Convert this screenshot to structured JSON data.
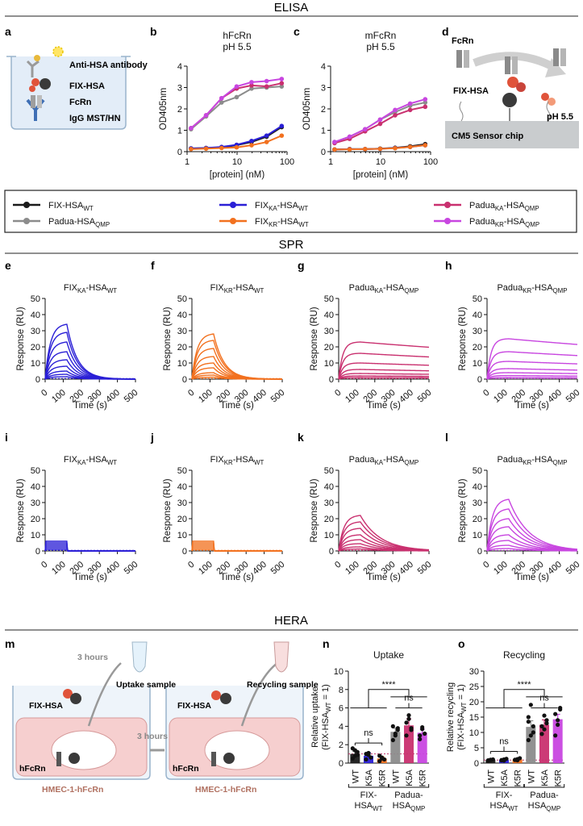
{
  "sections": {
    "elisa": "ELISA",
    "spr": "SPR",
    "hera": "HERA"
  },
  "panel_letters": [
    "a",
    "b",
    "c",
    "d",
    "e",
    "f",
    "g",
    "h",
    "i",
    "j",
    "k",
    "l",
    "m",
    "n",
    "o"
  ],
  "colors": {
    "FIX_WT": "#1a1a1a",
    "Padua_QMP": "#8c8c8c",
    "FIX_KA": "#2a1fd6",
    "FIX_KR": "#f2711f",
    "Padua_KA": "#c9306f",
    "Padua_KR": "#c846e0"
  },
  "schematic_a": {
    "labels": [
      "Anti-HSA antibody",
      "FIX-HSA",
      "FcRn",
      "IgG MST/HN"
    ]
  },
  "schematic_d": {
    "labels": [
      "FcRn",
      "FIX-HSA",
      "pH 5.5",
      "CM5 Sensor chip"
    ]
  },
  "schematic_m": {
    "labels": [
      "3 hours",
      "Uptake sample",
      "Recycling sample",
      "FIX-HSA",
      "FIX-HSA",
      "hFcRn",
      "hFcRn",
      "3 hours",
      "HMEC-1-hFcRn",
      "HMEC-1-hFcRn"
    ]
  },
  "legend": [
    {
      "key": "FIX_WT",
      "main": "FIX-HSA",
      "sub_a": "",
      "mid": "",
      "sub_b": "WT"
    },
    {
      "key": "Padua_QMP",
      "main": "Padua-HSA",
      "sub_a": "",
      "mid": "",
      "sub_b": "QMP"
    },
    {
      "key": "FIX_KA",
      "main": "FIX",
      "sub_a": "KA",
      "mid": "-HSA",
      "sub_b": "WT"
    },
    {
      "key": "FIX_KR",
      "main": "FIX",
      "sub_a": "KR",
      "mid": "-HSA",
      "sub_b": "WT"
    },
    {
      "key": "Padua_KA",
      "main": "Padua",
      "sub_a": "KA",
      "mid": "-HSA",
      "sub_b": "QMP"
    },
    {
      "key": "Padua_KR",
      "main": "Padua",
      "sub_a": "KR",
      "mid": "-HSA",
      "sub_b": "QMP"
    }
  ],
  "chart_data": [
    {
      "panel": "b",
      "type": "line",
      "title": "hFcRn",
      "subtitle": "pH 5.5",
      "xlabel": "[protein] (nM)",
      "ylabel": "OD405nm",
      "xscale": "log",
      "xlim": [
        1,
        100
      ],
      "ylim": [
        0,
        4
      ],
      "xticks": [
        1,
        10,
        100
      ],
      "yticks": [
        0,
        1,
        2,
        3,
        4
      ],
      "x": [
        1.2,
        2.4,
        4.9,
        9.8,
        19.5,
        39,
        78
      ],
      "series": [
        {
          "key": "FIX_WT",
          "values": [
            0.15,
            0.17,
            0.2,
            0.3,
            0.45,
            0.7,
            1.15
          ]
        },
        {
          "key": "FIX_KA",
          "values": [
            0.15,
            0.17,
            0.22,
            0.32,
            0.5,
            0.75,
            1.2
          ]
        },
        {
          "key": "FIX_KR",
          "values": [
            0.12,
            0.14,
            0.17,
            0.2,
            0.3,
            0.45,
            0.75
          ]
        },
        {
          "key": "Padua_QMP",
          "values": [
            1.05,
            1.65,
            2.3,
            2.55,
            2.95,
            3.0,
            3.05
          ]
        },
        {
          "key": "Padua_KA",
          "values": [
            1.1,
            1.7,
            2.5,
            2.95,
            3.1,
            3.05,
            3.2
          ]
        },
        {
          "key": "Padua_KR",
          "values": [
            1.1,
            1.7,
            2.5,
            3.05,
            3.25,
            3.3,
            3.4
          ]
        }
      ]
    },
    {
      "panel": "c",
      "type": "line",
      "title": "mFcRn",
      "subtitle": "pH 5.5",
      "xlabel": "[protein] (nM)",
      "ylabel": "OD405nm",
      "xscale": "log",
      "xlim": [
        1,
        100
      ],
      "ylim": [
        0,
        4
      ],
      "xticks": [
        1,
        10,
        100
      ],
      "yticks": [
        0,
        1,
        2,
        3,
        4
      ],
      "x": [
        1.2,
        2.4,
        4.9,
        9.8,
        19.5,
        39,
        78
      ],
      "series": [
        {
          "key": "FIX_WT",
          "values": [
            0.1,
            0.12,
            0.12,
            0.14,
            0.18,
            0.25,
            0.35
          ]
        },
        {
          "key": "FIX_KA",
          "values": [
            0.1,
            0.12,
            0.12,
            0.13,
            0.17,
            0.22,
            0.3
          ]
        },
        {
          "key": "FIX_KR",
          "values": [
            0.1,
            0.11,
            0.12,
            0.13,
            0.16,
            0.22,
            0.3
          ]
        },
        {
          "key": "Padua_QMP",
          "values": [
            0.45,
            0.7,
            1.05,
            1.5,
            1.85,
            2.15,
            2.3
          ]
        },
        {
          "key": "Padua_KA",
          "values": [
            0.4,
            0.6,
            0.95,
            1.3,
            1.7,
            1.95,
            2.1
          ]
        },
        {
          "key": "Padua_KR",
          "values": [
            0.45,
            0.7,
            1.05,
            1.5,
            1.95,
            2.25,
            2.45
          ]
        }
      ]
    },
    {
      "panel": "e",
      "type": "line",
      "key": "FIX_KA",
      "title_main": "FIX",
      "title_sub_a": "KA",
      "title_mid": "-HSA",
      "title_sub_b": "WT",
      "xlabel": "Time (s)",
      "ylabel": "Response (RU)",
      "xlim": [
        0,
        500
      ],
      "ylim": [
        0,
        50
      ],
      "xticks": [
        0,
        100,
        200,
        300,
        400,
        500
      ],
      "yticks": [
        0,
        10,
        20,
        30,
        40,
        50
      ],
      "injection_end_s": 120,
      "shape": "fast",
      "peaks": [
        34,
        29,
        23,
        17,
        12,
        8,
        5,
        3,
        1.5
      ]
    },
    {
      "panel": "f",
      "type": "line",
      "key": "FIX_KR",
      "title_main": "FIX",
      "title_sub_a": "KR",
      "title_mid": "-HSA",
      "title_sub_b": "WT",
      "xlabel": "Time (s)",
      "ylabel": "Response (RU)",
      "xlim": [
        0,
        500
      ],
      "ylim": [
        0,
        50
      ],
      "xticks": [
        0,
        100,
        200,
        300,
        400,
        500
      ],
      "yticks": [
        0,
        10,
        20,
        30,
        40,
        50
      ],
      "injection_end_s": 120,
      "shape": "fast",
      "peaks": [
        28,
        24,
        19,
        14,
        10,
        7,
        4,
        2.5,
        1.2
      ]
    },
    {
      "panel": "g",
      "type": "line",
      "key": "Padua_KA",
      "title_main": "Padua",
      "title_sub_a": "KA",
      "title_mid": "-HSA",
      "title_sub_b": "QMP",
      "xlabel": "Time (s)",
      "ylabel": "Response (RU)",
      "xlim": [
        0,
        500
      ],
      "ylim": [
        0,
        50
      ],
      "xticks": [
        0,
        100,
        200,
        300,
        400,
        500
      ],
      "yticks": [
        0,
        10,
        20,
        30,
        40,
        50
      ],
      "injection_end_s": 120,
      "shape": "stable",
      "peaks": [
        23,
        16,
        10,
        6,
        3.5,
        2,
        1
      ]
    },
    {
      "panel": "h",
      "type": "line",
      "key": "Padua_KR",
      "title_main": "Padua",
      "title_sub_a": "KR",
      "title_mid": "-HSA",
      "title_sub_b": "QMP",
      "xlabel": "Time (s)",
      "ylabel": "Response (RU)",
      "xlim": [
        0,
        500
      ],
      "ylim": [
        0,
        50
      ],
      "xticks": [
        0,
        100,
        200,
        300,
        400,
        500
      ],
      "yticks": [
        0,
        10,
        20,
        30,
        40,
        50
      ],
      "injection_end_s": 120,
      "shape": "stable",
      "peaks": [
        25,
        17,
        11,
        6.5,
        4,
        2.2,
        1
      ]
    },
    {
      "panel": "i",
      "type": "line",
      "key": "FIX_KA",
      "title_main": "FIX",
      "title_sub_a": "KA",
      "title_mid": "-HSA",
      "title_sub_b": "WT",
      "xlabel": "Time (s)",
      "ylabel": "Response (RU)",
      "xlim": [
        0,
        500
      ],
      "ylim": [
        0,
        50
      ],
      "xticks": [
        0,
        100,
        200,
        300,
        400,
        500
      ],
      "yticks": [
        0,
        10,
        20,
        30,
        40,
        50
      ],
      "injection_end_s": 120,
      "shape": "square",
      "peaks": [
        6,
        5,
        4,
        3,
        2,
        1
      ]
    },
    {
      "panel": "j",
      "type": "line",
      "key": "FIX_KR",
      "title_main": "FIX",
      "title_sub_a": "KR",
      "title_mid": "-HSA",
      "title_sub_b": "WT",
      "xlabel": "Time (s)",
      "ylabel": "Response (RU)",
      "xlim": [
        0,
        500
      ],
      "ylim": [
        0,
        50
      ],
      "xticks": [
        0,
        100,
        200,
        300,
        400,
        500
      ],
      "yticks": [
        0,
        10,
        20,
        30,
        40,
        50
      ],
      "injection_end_s": 120,
      "shape": "square",
      "peaks": [
        6,
        5,
        4,
        3,
        2,
        1
      ]
    },
    {
      "panel": "k",
      "type": "line",
      "key": "Padua_KA",
      "title_main": "Padua",
      "title_sub_a": "KA",
      "title_mid": "-HSA",
      "title_sub_b": "QMP",
      "xlabel": "Time (s)",
      "ylabel": "Response (RU)",
      "xlim": [
        0,
        500
      ],
      "ylim": [
        0,
        50
      ],
      "xticks": [
        0,
        100,
        200,
        300,
        400,
        500
      ],
      "yticks": [
        0,
        10,
        20,
        30,
        40,
        50
      ],
      "injection_end_s": 120,
      "shape": "medium",
      "peaks": [
        22,
        18,
        14,
        10,
        7,
        4.5,
        2.5,
        1.2
      ]
    },
    {
      "panel": "l",
      "type": "line",
      "key": "Padua_KR",
      "title_main": "Padua",
      "title_sub_a": "KR",
      "title_mid": "-HSA",
      "title_sub_b": "QMP",
      "xlabel": "Time (s)",
      "ylabel": "Response (RU)",
      "xlim": [
        0,
        500
      ],
      "ylim": [
        0,
        50
      ],
      "xticks": [
        0,
        100,
        200,
        300,
        400,
        500
      ],
      "yticks": [
        0,
        10,
        20,
        30,
        40,
        50
      ],
      "injection_end_s": 120,
      "shape": "medium",
      "peaks": [
        32,
        26,
        20,
        15,
        10,
        6.5,
        3.5,
        1.5
      ]
    },
    {
      "panel": "n",
      "type": "bar",
      "title": "Uptake",
      "ylabel_a": "Relative uptake",
      "ylabel_b": "(FIX-HSA",
      "ylabel_sub": "WT",
      "ylabel_c": " = 1)",
      "ylim": [
        0,
        10
      ],
      "yticks": [
        0,
        2,
        4,
        6,
        8,
        10
      ],
      "reference_line": 1,
      "categories": [
        "WT",
        "K5A",
        "K5R",
        "WT",
        "K5A",
        "K5R"
      ],
      "bar_keys": [
        "FIX_WT",
        "FIX_KA",
        "FIX_KR",
        "Padua_QMP",
        "Padua_KA",
        "Padua_KR"
      ],
      "values": [
        1.0,
        0.8,
        0.5,
        3.4,
        4.1,
        3.3
      ],
      "errors": [
        0.3,
        0.3,
        0.2,
        0.4,
        0.7,
        0.4
      ],
      "points": [
        [
          0.5,
          1.4,
          0.9,
          1.6,
          0.8,
          1.2
        ],
        [
          0.4,
          1.1,
          0.6,
          1.0,
          0.9
        ],
        [
          0.2,
          0.6,
          0.4,
          0.8,
          0.5
        ],
        [
          2.5,
          3.2,
          3.8,
          4.0,
          3.0,
          3.6
        ],
        [
          3.0,
          4.8,
          3.6,
          4.4,
          5.2,
          3.8
        ],
        [
          2.6,
          3.9,
          3.2,
          3.0,
          3.7
        ]
      ],
      "stars": "****",
      "ns_low": "ns",
      "ns_high": "ns",
      "groups": [
        {
          "main": "FIX-",
          "line2": "HSA",
          "sub": "WT"
        },
        {
          "main": "Padua-",
          "line2": "HSA",
          "sub": "QMP"
        }
      ]
    },
    {
      "panel": "o",
      "type": "bar",
      "title": "Recycling",
      "ylabel_a": "Relative recycling",
      "ylabel_b": "(FIX-HSA",
      "ylabel_sub": "WT",
      "ylabel_c": " = 1)",
      "ylim": [
        0,
        30
      ],
      "yticks": [
        0,
        5,
        10,
        15,
        20,
        25,
        30
      ],
      "reference_line": 1,
      "categories": [
        "WT",
        "K5A",
        "K5R",
        "WT",
        "K5A",
        "K5R"
      ],
      "bar_keys": [
        "FIX_WT",
        "FIX_KA",
        "FIX_KR",
        "Padua_QMP",
        "Padua_KA",
        "Padua_KR"
      ],
      "values": [
        1.0,
        1.1,
        1.2,
        11.8,
        12.5,
        14.3
      ],
      "errors": [
        0.2,
        0.2,
        0.3,
        2.0,
        1.6,
        1.6
      ],
      "points": [
        [
          0.8,
          1.1,
          1.2,
          0.9,
          1.0
        ],
        [
          0.9,
          1.2,
          1.4,
          1.0,
          0.8
        ],
        [
          1.0,
          1.3,
          1.6,
          1.1,
          0.9
        ],
        [
          7.5,
          9.0,
          12.0,
          15.0,
          19.0,
          10.0,
          13.5
        ],
        [
          9.5,
          11.0,
          14.0,
          12.0,
          15.5,
          13.0
        ],
        [
          9.0,
          14.0,
          17.5,
          16.0,
          12.5,
          18.0
        ]
      ],
      "stars": "****",
      "ns_low": "ns",
      "ns_high": "ns",
      "groups": [
        {
          "main": "FIX-",
          "line2": "HSA",
          "sub": "WT"
        },
        {
          "main": "Padua-",
          "line2": "HSA",
          "sub": "QMP"
        }
      ]
    }
  ]
}
